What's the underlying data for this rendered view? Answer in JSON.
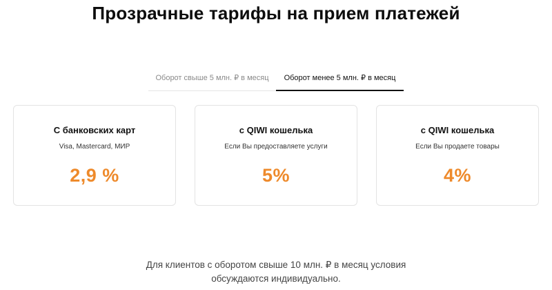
{
  "page": {
    "title": "Прозрачные тарифы на прием платежей"
  },
  "tabs": [
    {
      "label": "Оборот свыше 5 млн. ₽ в месяц",
      "active": false
    },
    {
      "label": "Оборот менее 5 млн. ₽ в месяц",
      "active": true
    }
  ],
  "cards": [
    {
      "title": "С банковских карт",
      "subtitle": "Visa, Mastercard, МИР",
      "rate": "2,9 %"
    },
    {
      "title": "с QIWI кошелька",
      "subtitle": "Если Вы предоставляете услуги",
      "rate": "5%"
    },
    {
      "title": "с QIWI кошелька",
      "subtitle": "Если Вы продаете товары",
      "rate": "4%"
    }
  ],
  "footer": {
    "note_line1": "Для клиентов с оборотом свыше 10 млн. ₽ в месяц условия",
    "note_line2": "обсуждаются индивидуально."
  },
  "colors": {
    "accent": "#ee8a2b",
    "active_tab_underline": "#111111",
    "card_border": "#e3e3e3"
  }
}
